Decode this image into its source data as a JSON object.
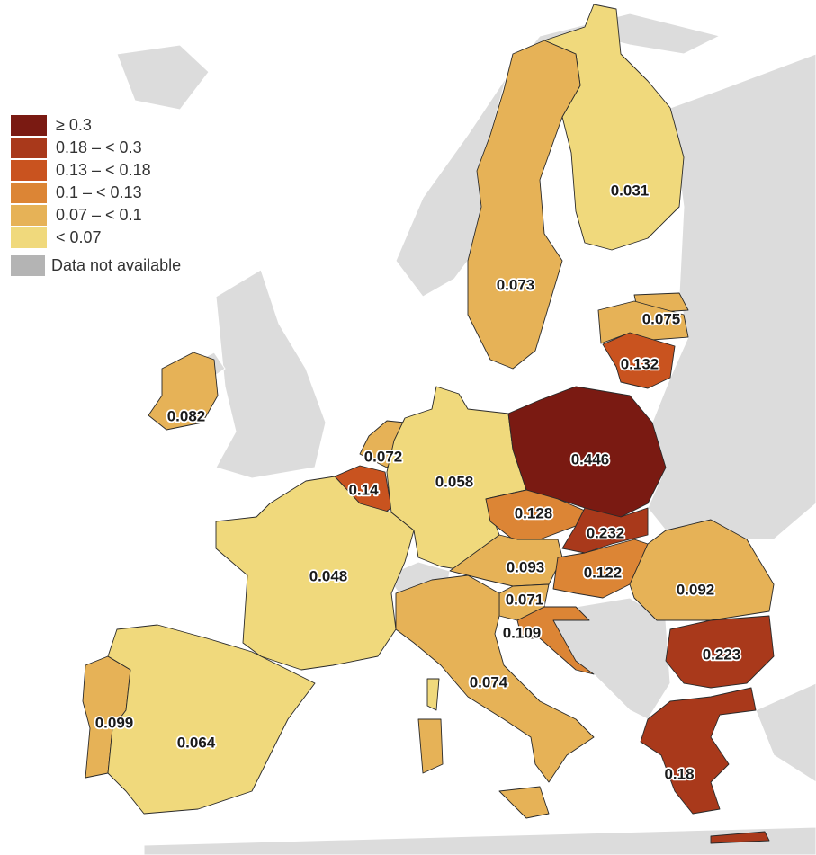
{
  "legend": {
    "items": [
      {
        "label": "≥ 0.3",
        "color": "#7a1a12"
      },
      {
        "label": "0.18 – < 0.3",
        "color": "#a9391b"
      },
      {
        "label": "0.13 – < 0.18",
        "color": "#c9531f"
      },
      {
        "label": "0.1 – < 0.13",
        "color": "#dc8535"
      },
      {
        "label": "0.07 – < 0.1",
        "color": "#e6b257"
      },
      {
        "label": "< 0.07",
        "color": "#f0d97c"
      },
      {
        "label": "Data not available",
        "color": "#b4b4b4"
      }
    ]
  },
  "regions": [
    {
      "value": 0.031,
      "color": "#f0d97c"
    },
    {
      "value": 0.073,
      "color": "#e6b257"
    },
    {
      "value": 0.075,
      "color": "#e6b257"
    },
    {
      "value": 0.132,
      "color": "#c9531f"
    },
    {
      "value": 0.082,
      "color": "#e6b257"
    },
    {
      "value": 0.072,
      "color": "#e6b257"
    },
    {
      "value": 0.14,
      "color": "#c9531f"
    },
    {
      "value": 0.058,
      "color": "#f0d97c"
    },
    {
      "value": 0.446,
      "color": "#7a1a12"
    },
    {
      "value": 0.128,
      "color": "#dc8535"
    },
    {
      "value": 0.232,
      "color": "#a9391b"
    },
    {
      "value": 0.093,
      "color": "#e6b257"
    },
    {
      "value": 0.122,
      "color": "#dc8535"
    },
    {
      "value": 0.092,
      "color": "#e6b257"
    },
    {
      "value": 0.048,
      "color": "#f0d97c"
    },
    {
      "value": 0.071,
      "color": "#e6b257"
    },
    {
      "value": 0.109,
      "color": "#dc8535"
    },
    {
      "value": 0.223,
      "color": "#a9391b"
    },
    {
      "value": 0.074,
      "color": "#e6b257"
    },
    {
      "value": 0.099,
      "color": "#e6b257"
    },
    {
      "value": 0.064,
      "color": "#f0d97c"
    },
    {
      "value": 0.18,
      "color": "#a9391b"
    }
  ]
}
